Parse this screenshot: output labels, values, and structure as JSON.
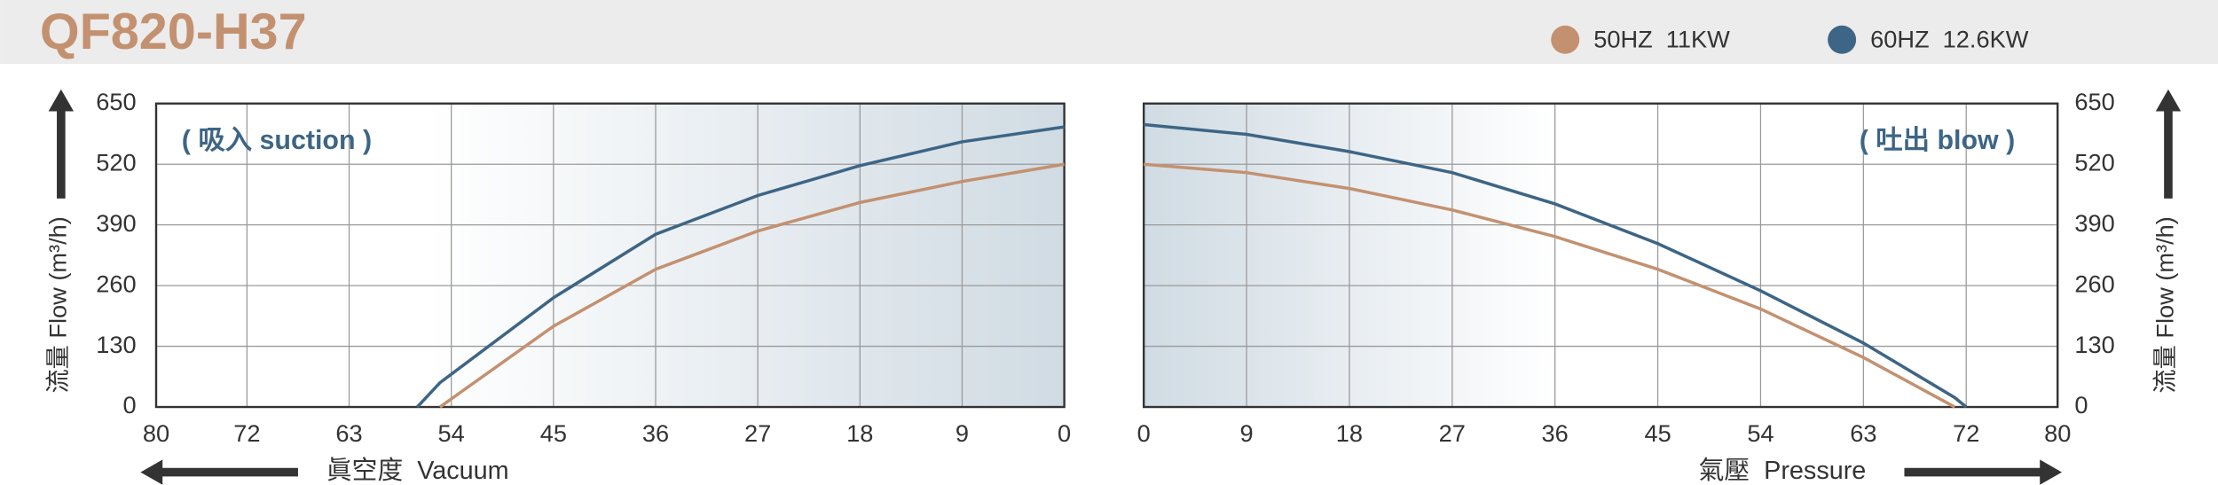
{
  "header": {
    "title": "QF820-H37",
    "legend": [
      {
        "name": "50HZ  11KW",
        "color": "#c39170"
      },
      {
        "name": "60HZ  12.6KW",
        "color": "#3d6585"
      }
    ]
  },
  "chart_data": [
    {
      "type": "line",
      "annotation": "( 吸入 suction )",
      "x_label": "眞空度  Vacuum",
      "y_label": "流量 Flow (m³/h)",
      "y_axis_side": "left",
      "x": [
        57,
        55,
        45,
        36,
        27,
        18,
        9,
        0
      ],
      "series": [
        {
          "color": "#c39170",
          "values": [
            null,
            0,
            173,
            295,
            377,
            438,
            483,
            520
          ]
        },
        {
          "color": "#3d6585",
          "values": [
            0,
            52,
            234,
            370,
            453,
            517,
            568,
            600
          ]
        }
      ],
      "xlim": [
        80,
        0
      ],
      "xticks": [
        80,
        72,
        63,
        54,
        45,
        36,
        27,
        18,
        9,
        0
      ],
      "ylim": [
        0,
        650
      ],
      "yticks": [
        0,
        130,
        260,
        390,
        520,
        650
      ],
      "grid": true
    },
    {
      "type": "line",
      "annotation": "( 吐出 blow )",
      "x_label": "氣壓  Pressure",
      "y_label": "流量 Flow (m³/h)",
      "y_axis_side": "right",
      "x": [
        0,
        9,
        18,
        27,
        36,
        45,
        54,
        63,
        71,
        72
      ],
      "series": [
        {
          "color": "#c39170",
          "values": [
            520,
            502,
            468,
            422,
            365,
            295,
            210,
            106,
            0,
            null
          ]
        },
        {
          "color": "#3d6585",
          "values": [
            605,
            584,
            547,
            502,
            435,
            350,
            249,
            137,
            20,
            0
          ]
        }
      ],
      "xlim": [
        0,
        80
      ],
      "xticks": [
        0,
        9,
        18,
        27,
        36,
        45,
        54,
        63,
        72,
        80
      ],
      "ylim": [
        0,
        650
      ],
      "yticks": [
        0,
        130,
        260,
        390,
        520,
        650
      ],
      "grid": true
    }
  ]
}
